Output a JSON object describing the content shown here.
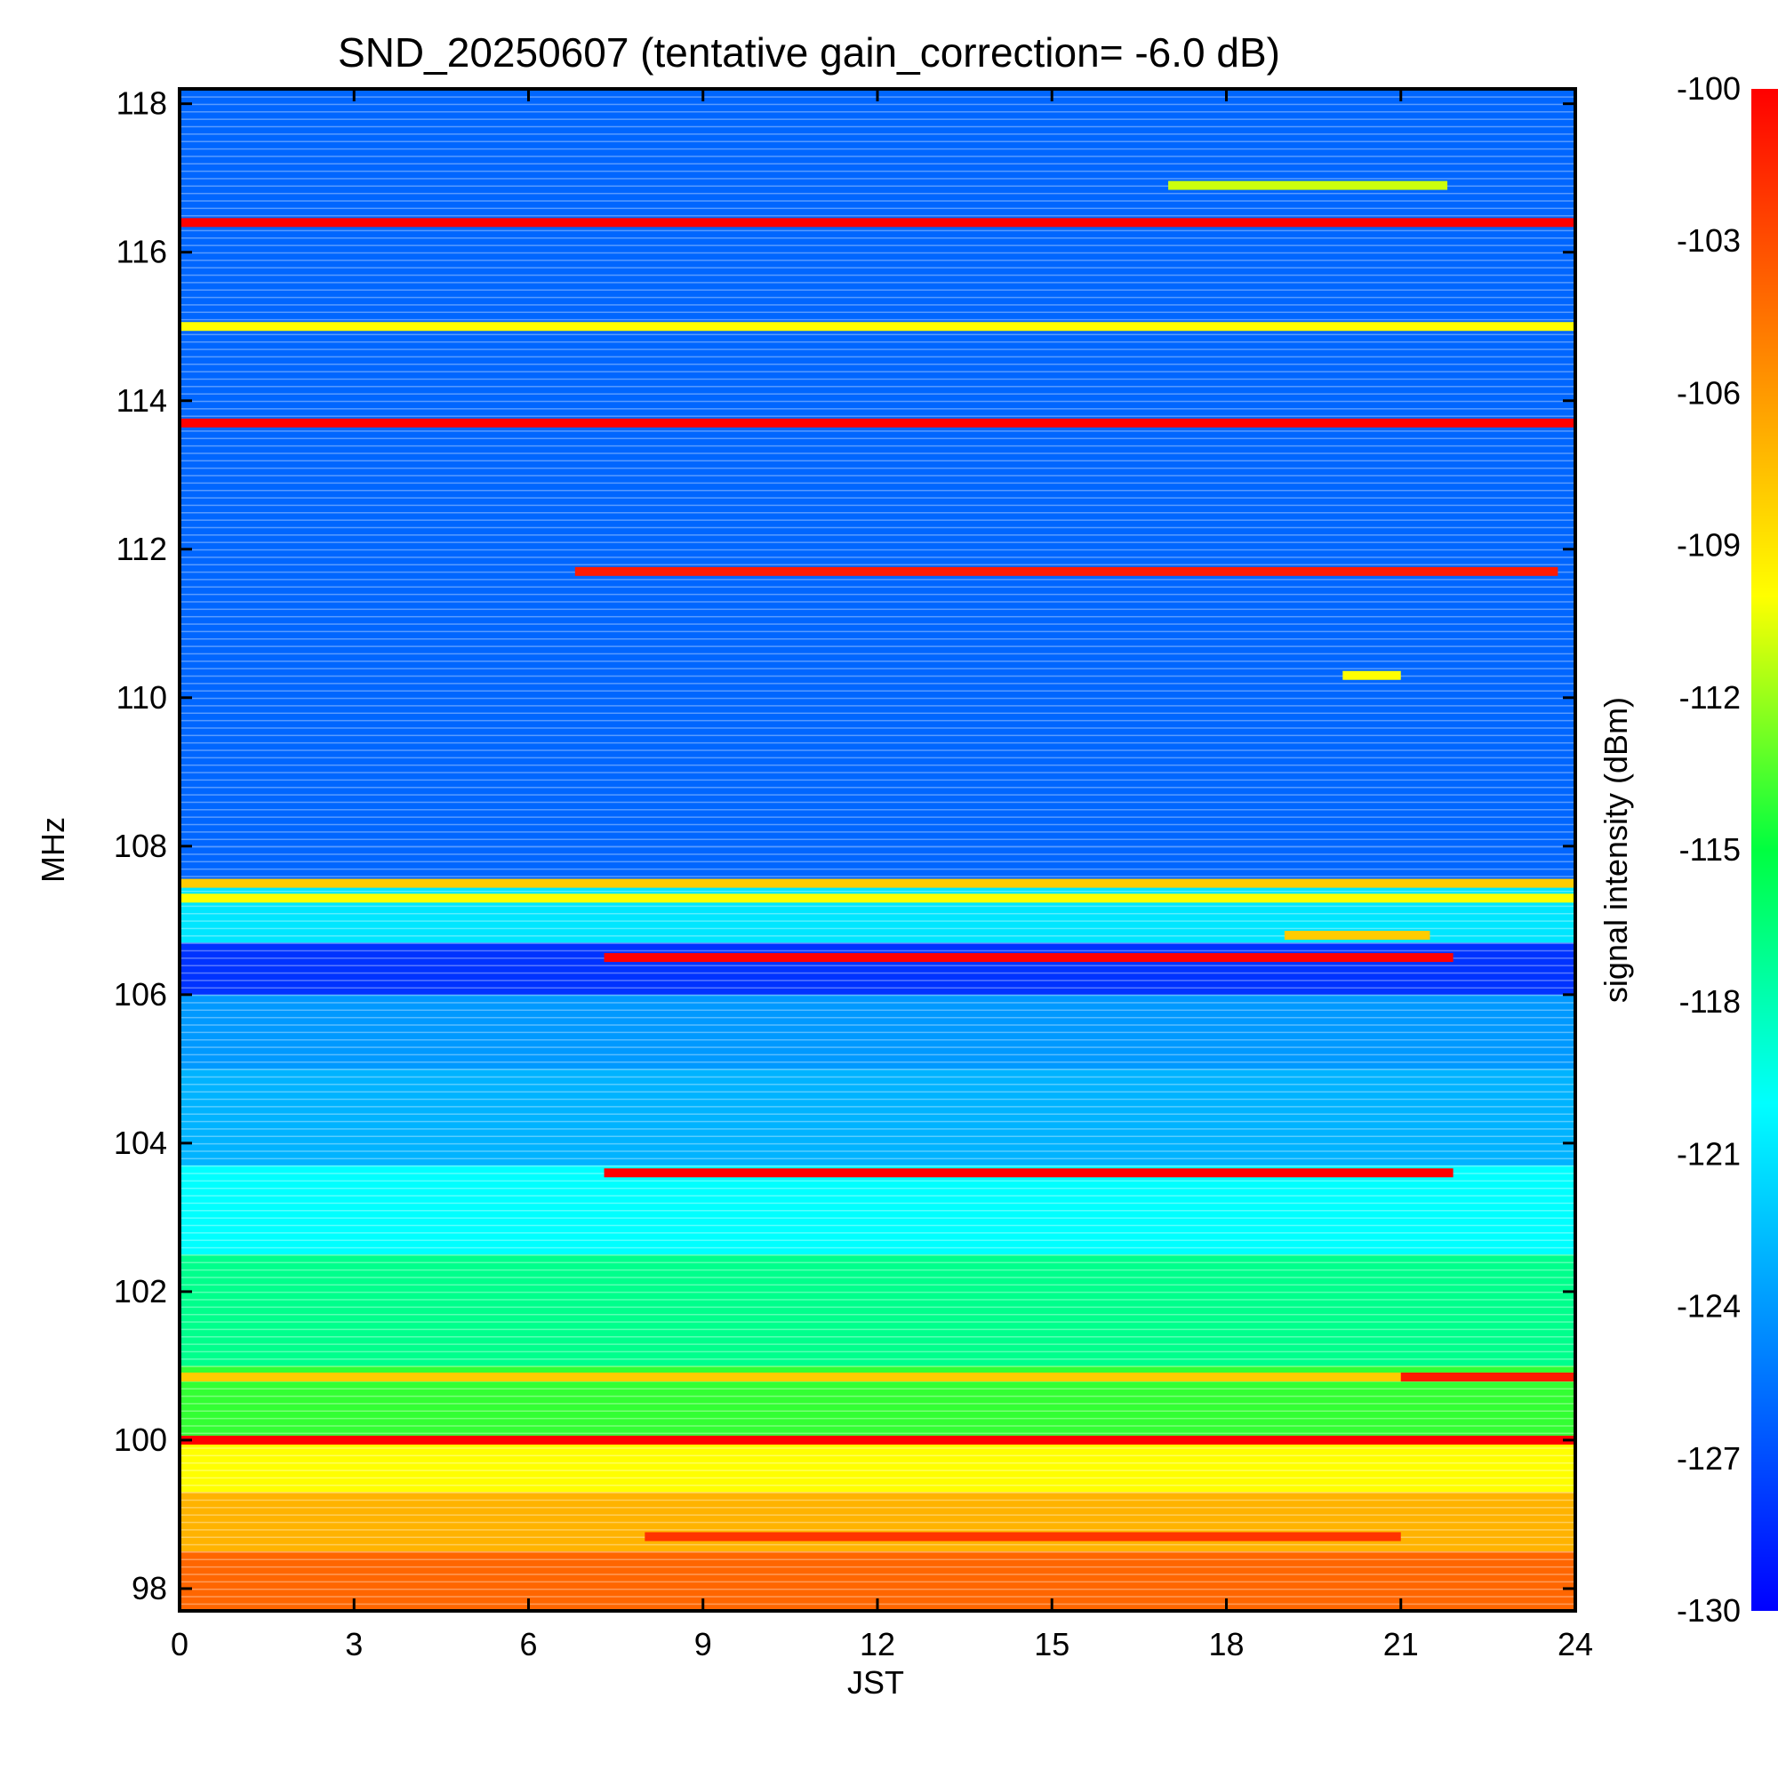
{
  "chart_data": {
    "type": "heatmap",
    "title": "SND_20250607 (tentative gain_correction= -6.0 dB)",
    "xlabel": "JST",
    "ylabel": "MHz",
    "xlim": [
      0,
      24
    ],
    "ylim": [
      97.7,
      118.2
    ],
    "x_ticks": [
      "0",
      "3",
      "6",
      "9",
      "12",
      "15",
      "18",
      "21",
      "24"
    ],
    "x_tick_values": [
      0,
      3,
      6,
      9,
      12,
      15,
      18,
      21,
      24
    ],
    "y_ticks": [
      "98",
      "100",
      "102",
      "104",
      "106",
      "108",
      "110",
      "112",
      "114",
      "116",
      "118"
    ],
    "y_tick_values": [
      98,
      100,
      102,
      104,
      106,
      108,
      110,
      112,
      114,
      116,
      118
    ],
    "colorbar": {
      "label": "signal intensity (dBm)",
      "range": [
        -130,
        -100
      ],
      "ticks": [
        "-100",
        "-103",
        "-106",
        "-109",
        "-112",
        "-115",
        "-118",
        "-121",
        "-124",
        "-127",
        "-130"
      ],
      "tick_values": [
        -100,
        -103,
        -106,
        -109,
        -112,
        -115,
        -118,
        -121,
        -124,
        -127,
        -130
      ],
      "colormap": [
        "#0000ff",
        "#0080ff",
        "#00ffff",
        "#00ff40",
        "#ffff00",
        "#ff8000",
        "#ff0000"
      ]
    },
    "background_bands": [
      {
        "f_low": 97.7,
        "f_high": 98.5,
        "dbm": -104
      },
      {
        "f_low": 98.5,
        "f_high": 99.3,
        "dbm": -107
      },
      {
        "f_low": 99.3,
        "f_high": 100.0,
        "dbm": -110
      },
      {
        "f_low": 100.0,
        "f_high": 101.0,
        "dbm": -114
      },
      {
        "f_low": 101.0,
        "f_high": 102.5,
        "dbm": -117
      },
      {
        "f_low": 102.5,
        "f_high": 103.7,
        "dbm": -120
      },
      {
        "f_low": 103.7,
        "f_high": 105.0,
        "dbm": -123
      },
      {
        "f_low": 105.0,
        "f_high": 106.0,
        "dbm": -124
      },
      {
        "f_low": 106.0,
        "f_high": 106.7,
        "dbm": -128
      },
      {
        "f_low": 106.7,
        "f_high": 107.5,
        "dbm": -121
      },
      {
        "f_low": 107.5,
        "f_high": 108.0,
        "dbm": -126
      },
      {
        "f_low": 108.0,
        "f_high": 118.2,
        "dbm": -126
      }
    ],
    "signals": [
      {
        "freq": 116.4,
        "t_start": 0,
        "t_end": 24,
        "dbm": -100
      },
      {
        "freq": 115.0,
        "t_start": 0,
        "t_end": 24,
        "dbm": -110
      },
      {
        "freq": 113.7,
        "t_start": 0,
        "t_end": 24,
        "dbm": -100
      },
      {
        "freq": 111.7,
        "t_start": 6.8,
        "t_end": 23.7,
        "dbm": -101
      },
      {
        "freq": 116.9,
        "t_start": 17.0,
        "t_end": 21.8,
        "dbm": -111
      },
      {
        "freq": 110.3,
        "t_start": 20.0,
        "t_end": 21.0,
        "dbm": -110
      },
      {
        "freq": 107.5,
        "t_start": 0,
        "t_end": 24,
        "dbm": -108
      },
      {
        "freq": 107.3,
        "t_start": 0,
        "t_end": 24,
        "dbm": -110
      },
      {
        "freq": 106.5,
        "t_start": 7.3,
        "t_end": 21.9,
        "dbm": -100
      },
      {
        "freq": 106.8,
        "t_start": 19.0,
        "t_end": 21.5,
        "dbm": -108
      },
      {
        "freq": 103.6,
        "t_start": 7.3,
        "t_end": 21.9,
        "dbm": -100
      },
      {
        "freq": 100.0,
        "t_start": 0,
        "t_end": 24,
        "dbm": -100
      },
      {
        "freq": 100.85,
        "t_start": 0,
        "t_end": 24,
        "dbm": -108
      },
      {
        "freq": 100.85,
        "t_start": 21.0,
        "t_end": 24,
        "dbm": -101
      },
      {
        "freq": 98.7,
        "t_start": 8.0,
        "t_end": 21.0,
        "dbm": -102
      }
    ],
    "grid": false,
    "legend": "colorbar-right"
  }
}
